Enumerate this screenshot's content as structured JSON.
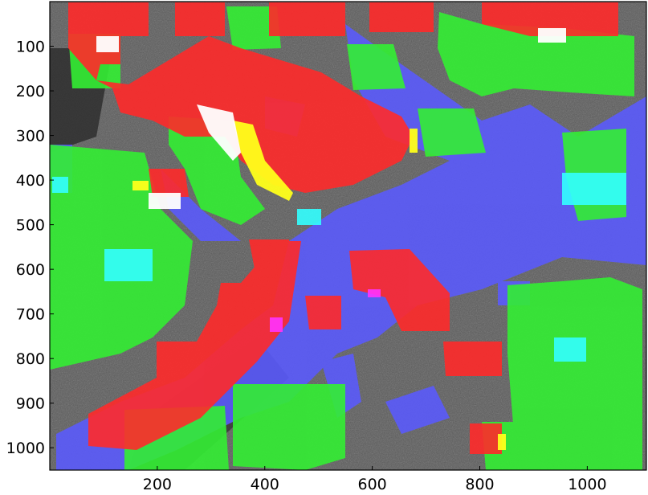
{
  "figure": {
    "image_kind": "aerial SAR image with land-cover segmentation overlay",
    "colors": {
      "background_image": "#5a5a5a",
      "class_red": "#ff2a2a",
      "class_green": "#33ee33",
      "class_blue": "#5a5aff",
      "class_cyan": "#33ffff",
      "class_yellow": "#ffff1a",
      "class_white": "#ffffff",
      "class_magenta": "#ff33ff"
    },
    "axes": {
      "x": {
        "range": [
          0,
          1110
        ],
        "ticks": [
          200,
          400,
          600,
          800,
          1000
        ],
        "tick_labels": [
          "200",
          "400",
          "600",
          "800",
          "1000"
        ]
      },
      "y": {
        "range": [
          0,
          1050
        ],
        "inverted": true,
        "ticks": [
          100,
          200,
          300,
          400,
          500,
          600,
          700,
          800,
          900,
          1000
        ],
        "tick_labels": [
          "100",
          "200",
          "300",
          "400",
          "500",
          "600",
          "700",
          "800",
          "900",
          "1000"
        ]
      }
    }
  }
}
